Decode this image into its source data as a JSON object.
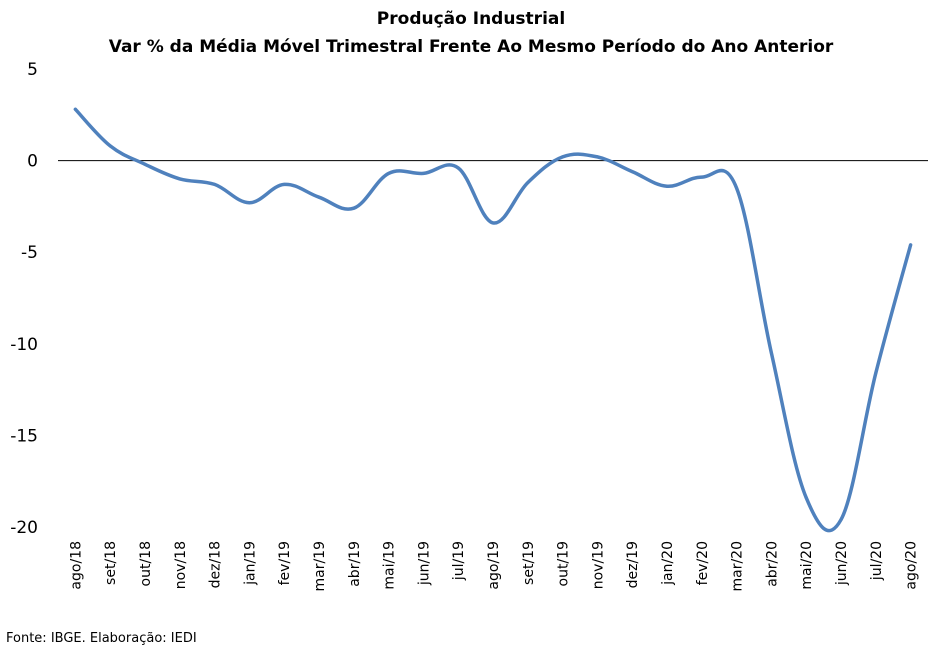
{
  "chart_data": {
    "type": "line",
    "title": "Produção Industrial",
    "subtitle": "Var % da Média Móvel Trimestral Frente Ao Mesmo Período do Ano Anterior",
    "categories": [
      "ago/18",
      "set/18",
      "out/18",
      "nov/18",
      "dez/18",
      "jan/19",
      "fev/19",
      "mar/19",
      "abr/19",
      "mai/19",
      "jun/19",
      "jul/19",
      "ago/19",
      "set/19",
      "out/19",
      "nov/19",
      "dez/19",
      "jan/20",
      "fev/20",
      "mar/20",
      "abr/20",
      "mai/20",
      "jun/20",
      "jul/20",
      "ago/20"
    ],
    "series": [
      {
        "values": [
          2.8,
          0.8,
          -0.2,
          -1.0,
          -1.3,
          -2.3,
          -1.3,
          -2.0,
          -2.6,
          -0.7,
          -0.7,
          -0.4,
          -3.4,
          -1.2,
          0.2,
          0.2,
          -0.6,
          -1.4,
          -0.9,
          -1.5,
          -10.5,
          -18.4,
          -19.6,
          -11.6,
          -4.6
        ],
        "color": "#4f81bd"
      }
    ],
    "yticks": [
      5,
      0,
      -5,
      -10,
      -15,
      -20
    ],
    "ylim": [
      -20,
      5
    ],
    "grid": false,
    "zero_line": true,
    "legend": "none"
  },
  "footer": {
    "source": "Fonte: IBGE. Elaboração: IEDI"
  }
}
